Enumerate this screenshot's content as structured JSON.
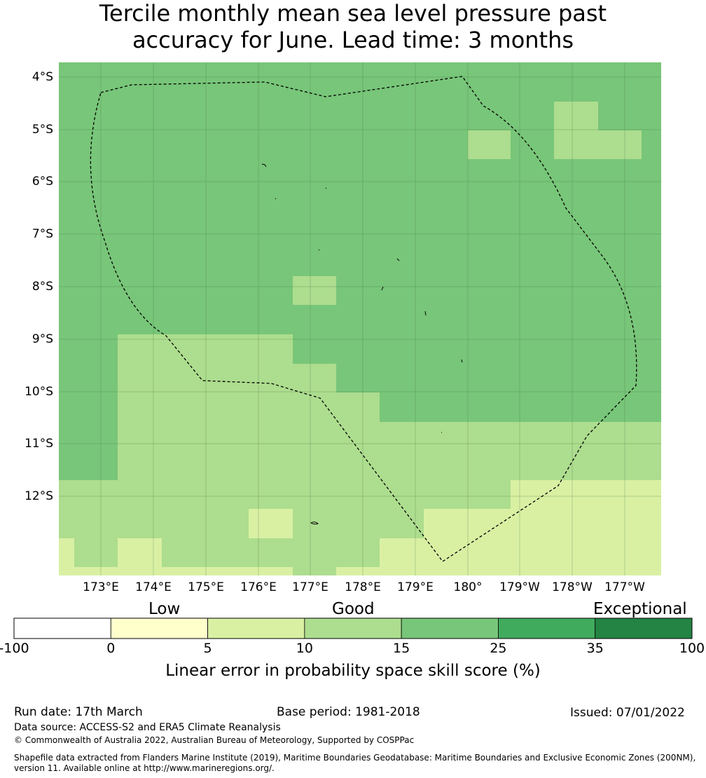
{
  "title": {
    "line1": "Tercile monthly mean sea level pressure past",
    "line2": "accuracy for June. Lead time: 3 months"
  },
  "map": {
    "lat_labels": [
      "4°S",
      "5°S",
      "6°S",
      "7°S",
      "8°S",
      "9°S",
      "10°S",
      "11°S",
      "12°S"
    ],
    "lon_labels": [
      "173°E",
      "174°E",
      "175°E",
      "176°E",
      "177°E",
      "178°E",
      "179°E",
      "180°",
      "179°W",
      "178°W",
      "177°W"
    ],
    "colors": {
      "c15_25": "#78c679",
      "c10_15": "#addd8e",
      "c5_10": "#d9f0a3",
      "c0_5": "#ffffcc",
      "cneg": "#ffffff",
      "c25_35": "#41ab5d",
      "c35_100": "#238443"
    }
  },
  "colorbar": {
    "category_labels": [
      "Low",
      "Good",
      "Exceptional"
    ],
    "ticks": [
      "-100",
      "0",
      "5",
      "10",
      "15",
      "25",
      "35",
      "100"
    ],
    "bin_colors": [
      "#ffffff",
      "#ffffcc",
      "#d9f0a3",
      "#addd8e",
      "#78c679",
      "#41ab5d",
      "#238443"
    ],
    "caption": "Linear error in probability space skill score (%)"
  },
  "footer": {
    "run_date": "Run date: 17th March",
    "base_period": "Base period: 1981-2018",
    "issued": "Issued: 07/01/2022",
    "data_source": "Data source: ACCESS-S2 and ERA5 Climate Reanalysis",
    "copyright": "© Commonwealth of Australia 2022, Australian Bureau of Meteorology, Supported by COSPPac",
    "shapefile_line1": "Shapefile data extracted from Flanders Marine Institute (2019), Maritime Boundaries Geodatabase: Maritime Boundaries and Exclusive Economic Zones (200NM),",
    "shapefile_line2": "version 11. Available online at http://www.marineregions.org/."
  }
}
